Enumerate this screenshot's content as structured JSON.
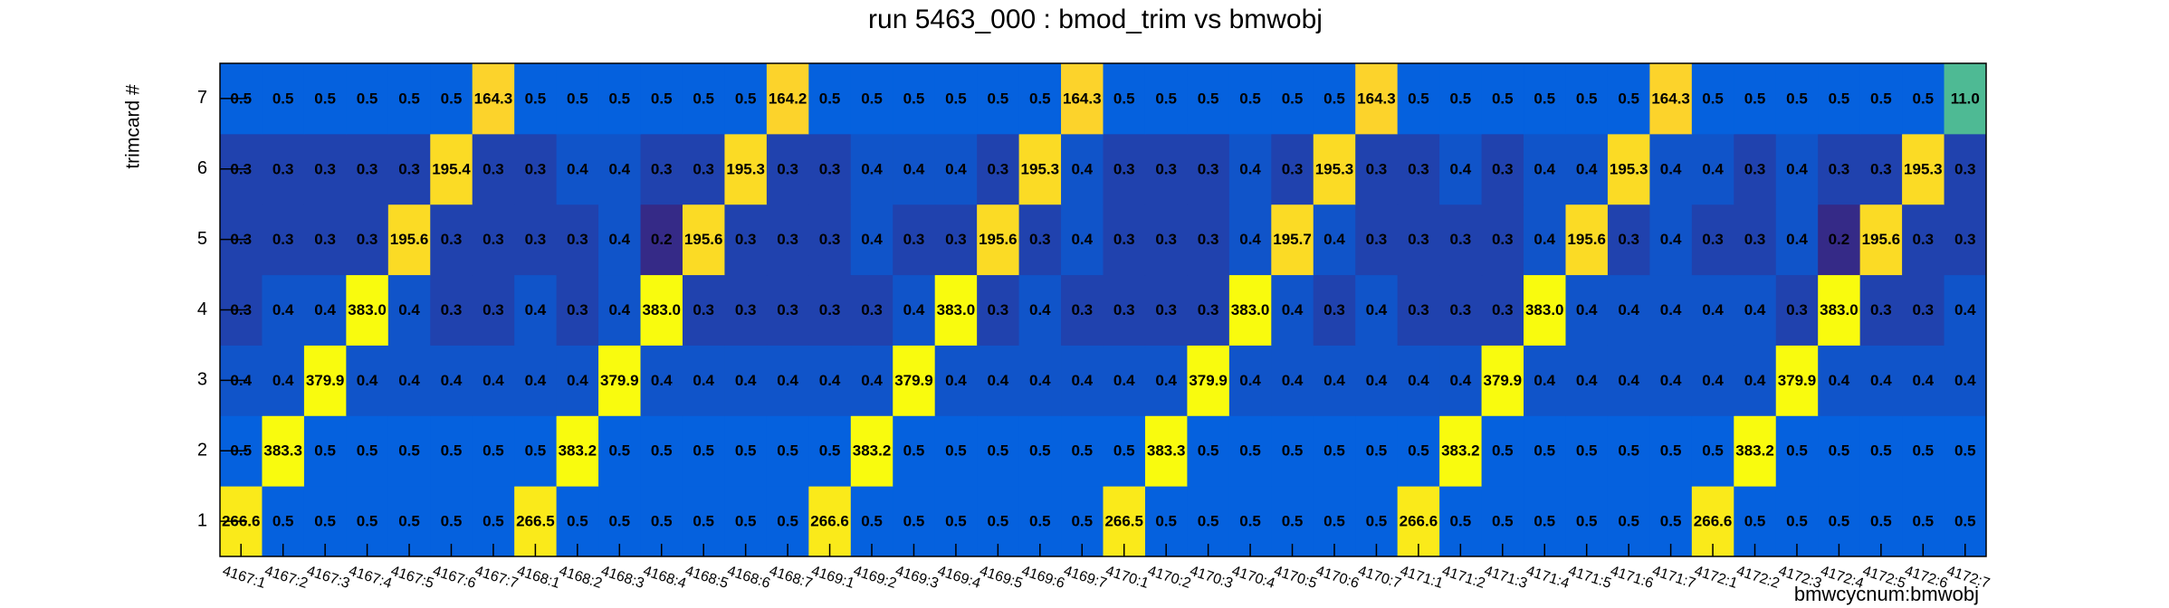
{
  "chart_data": {
    "type": "heatmap",
    "title": "run 5463_000 : bmod_trim vs bmwobj",
    "x_label": "bmwcycnum:bmwobj",
    "y_label": "trimcard #",
    "x_categories": [
      "4167:1",
      "4167:2",
      "4167:3",
      "4167:4",
      "4167:5",
      "4167:6",
      "4167:7",
      "4168:1",
      "4168:2",
      "4168:3",
      "4168:4",
      "4168:5",
      "4168:6",
      "4168:7",
      "4169:1",
      "4169:2",
      "4169:3",
      "4169:4",
      "4169:5",
      "4169:6",
      "4169:7",
      "4170:1",
      "4170:2",
      "4170:3",
      "4170:4",
      "4170:5",
      "4170:6",
      "4170:7",
      "4171:1",
      "4171:2",
      "4171:3",
      "4171:4",
      "4171:5",
      "4171:6",
      "4171:7",
      "4172:1",
      "4172:2",
      "4172:3",
      "4172:4",
      "4172:5",
      "4172:6",
      "4172:7"
    ],
    "y_categories": [
      "1",
      "2",
      "3",
      "4",
      "5",
      "6",
      "7"
    ],
    "zlog": true,
    "palette": [
      "#352a87",
      "#0363e1",
      "#1485d4",
      "#06a7c6",
      "#38b99e",
      "#92bf73",
      "#d9ba56",
      "#fcce2e",
      "#f9fb0e"
    ],
    "z": [
      [
        266.6,
        0.5,
        0.5,
        0.5,
        0.5,
        0.5,
        0.5,
        266.5,
        0.5,
        0.5,
        0.5,
        0.5,
        0.5,
        0.5,
        266.6,
        0.5,
        0.5,
        0.5,
        0.5,
        0.5,
        0.5,
        266.5,
        0.5,
        0.5,
        0.5,
        0.5,
        0.5,
        0.5,
        266.6,
        0.5,
        0.5,
        0.5,
        0.5,
        0.5,
        0.5,
        266.6,
        0.5,
        0.5,
        0.5,
        0.5,
        0.5,
        0.5
      ],
      [
        0.5,
        383.3,
        0.5,
        0.5,
        0.5,
        0.5,
        0.5,
        0.5,
        383.2,
        0.5,
        0.5,
        0.5,
        0.5,
        0.5,
        0.5,
        383.2,
        0.5,
        0.5,
        0.5,
        0.5,
        0.5,
        0.5,
        383.3,
        0.5,
        0.5,
        0.5,
        0.5,
        0.5,
        0.5,
        383.2,
        0.5,
        0.5,
        0.5,
        0.5,
        0.5,
        0.5,
        383.2,
        0.5,
        0.5,
        0.5,
        0.5,
        0.5
      ],
      [
        0.4,
        0.4,
        379.9,
        0.4,
        0.4,
        0.4,
        0.4,
        0.4,
        0.4,
        379.9,
        0.4,
        0.4,
        0.4,
        0.4,
        0.4,
        0.4,
        379.9,
        0.4,
        0.4,
        0.4,
        0.4,
        0.4,
        0.4,
        379.9,
        0.4,
        0.4,
        0.4,
        0.4,
        0.4,
        0.4,
        379.9,
        0.4,
        0.4,
        0.4,
        0.4,
        0.4,
        0.4,
        379.9,
        0.4,
        0.4,
        0.4,
        0.4
      ],
      [
        0.3,
        0.4,
        0.4,
        383.0,
        0.4,
        0.3,
        0.3,
        0.4,
        0.3,
        0.4,
        383.0,
        0.3,
        0.3,
        0.3,
        0.3,
        0.3,
        0.4,
        383.0,
        0.3,
        0.4,
        0.3,
        0.3,
        0.3,
        0.3,
        383.0,
        0.4,
        0.3,
        0.4,
        0.3,
        0.3,
        0.3,
        383.0,
        0.4,
        0.4,
        0.4,
        0.4,
        0.4,
        0.3,
        383.0,
        0.3,
        0.3,
        0.4
      ],
      [
        0.3,
        0.3,
        0.3,
        0.3,
        195.6,
        0.3,
        0.3,
        0.3,
        0.3,
        0.4,
        0.2,
        195.6,
        0.3,
        0.3,
        0.3,
        0.4,
        0.3,
        0.3,
        195.6,
        0.3,
        0.4,
        0.3,
        0.3,
        0.3,
        0.4,
        195.7,
        0.4,
        0.3,
        0.3,
        0.3,
        0.3,
        0.4,
        195.6,
        0.3,
        0.4,
        0.3,
        0.3,
        0.4,
        0.2,
        195.6,
        0.3,
        0.3
      ],
      [
        0.3,
        0.3,
        0.3,
        0.3,
        0.3,
        195.4,
        0.3,
        0.3,
        0.4,
        0.4,
        0.3,
        0.3,
        195.3,
        0.3,
        0.3,
        0.4,
        0.4,
        0.4,
        0.3,
        195.3,
        0.4,
        0.3,
        0.3,
        0.3,
        0.4,
        0.3,
        195.3,
        0.3,
        0.3,
        0.4,
        0.3,
        0.4,
        0.4,
        195.3,
        0.4,
        0.4,
        0.3,
        0.4,
        0.3,
        0.3,
        195.3,
        0.3
      ],
      [
        0.5,
        0.5,
        0.5,
        0.5,
        0.5,
        0.5,
        164.3,
        0.5,
        0.5,
        0.5,
        0.5,
        0.5,
        0.5,
        164.2,
        0.5,
        0.5,
        0.5,
        0.5,
        0.5,
        0.5,
        164.3,
        0.5,
        0.5,
        0.5,
        0.5,
        0.5,
        0.5,
        164.3,
        0.5,
        0.5,
        0.5,
        0.5,
        0.5,
        0.5,
        164.3,
        0.5,
        0.5,
        0.5,
        0.5,
        0.5,
        0.5,
        11.0
      ]
    ],
    "value_labels": [
      [
        "266.6",
        "0.5",
        "0.5",
        "0.5",
        "0.5",
        "0.5",
        "0.5",
        "266.5",
        "0.5",
        "0.5",
        "0.5",
        "0.5",
        "0.5",
        "0.5",
        "266.6",
        "0.5",
        "0.5",
        "0.5",
        "0.5",
        "0.5",
        "0.5",
        "266.5",
        "0.5",
        "0.5",
        "0.5",
        "0.5",
        "0.5",
        "0.5",
        "266.6",
        "0.5",
        "0.5",
        "0.5",
        "0.5",
        "0.5",
        "0.5",
        "266.6",
        "0.5",
        "0.5",
        "0.5",
        "0.5",
        "0.5",
        "0.5"
      ],
      [
        "0.5",
        "383.3",
        "0.5",
        "0.5",
        "0.5",
        "0.5",
        "0.5",
        "0.5",
        "383.2",
        "0.5",
        "0.5",
        "0.5",
        "0.5",
        "0.5",
        "0.5",
        "383.2",
        "0.5",
        "0.5",
        "0.5",
        "0.5",
        "0.5",
        "0.5",
        "383.3",
        "0.5",
        "0.5",
        "0.5",
        "0.5",
        "0.5",
        "0.5",
        "383.2",
        "0.5",
        "0.5",
        "0.5",
        "0.5",
        "0.5",
        "0.5",
        "383.2",
        "0.5",
        "0.5",
        "0.5",
        "0.5",
        "0.5"
      ],
      [
        "0.4",
        "0.4",
        "379.9",
        "0.4",
        "0.4",
        "0.4",
        "0.4",
        "0.4",
        "0.4",
        "379.9",
        "0.4",
        "0.4",
        "0.4",
        "0.4",
        "0.4",
        "0.4",
        "379.9",
        "0.4",
        "0.4",
        "0.4",
        "0.4",
        "0.4",
        "0.4",
        "379.9",
        "0.4",
        "0.4",
        "0.4",
        "0.4",
        "0.4",
        "0.4",
        "379.9",
        "0.4",
        "0.4",
        "0.4",
        "0.4",
        "0.4",
        "0.4",
        "379.9",
        "0.4",
        "0.4",
        "0.4",
        "0.4"
      ],
      [
        "0.3",
        "0.4",
        "0.4",
        "383.0",
        "0.4",
        "0.3",
        "0.3",
        "0.4",
        "0.3",
        "0.4",
        "383.0",
        "0.3",
        "0.3",
        "0.3",
        "0.3",
        "0.3",
        "0.4",
        "383.0",
        "0.3",
        "0.4",
        "0.3",
        "0.3",
        "0.3",
        "0.3",
        "383.0",
        "0.4",
        "0.3",
        "0.4",
        "0.3",
        "0.3",
        "0.3",
        "383.0",
        "0.4",
        "0.4",
        "0.4",
        "0.4",
        "0.4",
        "0.3",
        "383.0",
        "0.3",
        "0.3",
        "0.4"
      ],
      [
        "0.3",
        "0.3",
        "0.3",
        "0.3",
        "195.6",
        "0.3",
        "0.3",
        "0.3",
        "0.3",
        "0.4",
        "0.2",
        "195.6",
        "0.3",
        "0.3",
        "0.3",
        "0.4",
        "0.3",
        "0.3",
        "195.6",
        "0.3",
        "0.4",
        "0.3",
        "0.3",
        "0.3",
        "0.4",
        "195.7",
        "0.4",
        "0.3",
        "0.3",
        "0.3",
        "0.3",
        "0.4",
        "195.6",
        "0.3",
        "0.4",
        "0.3",
        "0.3",
        "0.4",
        "0.2",
        "195.6",
        "0.3",
        "0.3"
      ],
      [
        "0.3",
        "0.3",
        "0.3",
        "0.3",
        "0.3",
        "195.4",
        "0.3",
        "0.3",
        "0.4",
        "0.4",
        "0.3",
        "0.3",
        "195.3",
        "0.3",
        "0.3",
        "0.4",
        "0.4",
        "0.4",
        "0.3",
        "195.3",
        "0.4",
        "0.3",
        "0.3",
        "0.3",
        "0.4",
        "0.3",
        "195.3",
        "0.3",
        "0.3",
        "0.4",
        "0.3",
        "0.4",
        "0.4",
        "195.3",
        "0.4",
        "0.4",
        "0.3",
        "0.4",
        "0.3",
        "0.3",
        "195.3",
        "0.3"
      ],
      [
        "0.5",
        "0.5",
        "0.5",
        "0.5",
        "0.5",
        "0.5",
        "164.3",
        "0.5",
        "0.5",
        "0.5",
        "0.5",
        "0.5",
        "0.5",
        "164.2",
        "0.5",
        "0.5",
        "0.5",
        "0.5",
        "0.5",
        "0.5",
        "164.3",
        "0.5",
        "0.5",
        "0.5",
        "0.5",
        "0.5",
        "0.5",
        "164.3",
        "0.5",
        "0.5",
        "0.5",
        "0.5",
        "0.5",
        "0.5",
        "164.3",
        "0.5",
        "0.5",
        "0.5",
        "0.5",
        "0.5",
        "0.5",
        "11.0"
      ]
    ]
  }
}
